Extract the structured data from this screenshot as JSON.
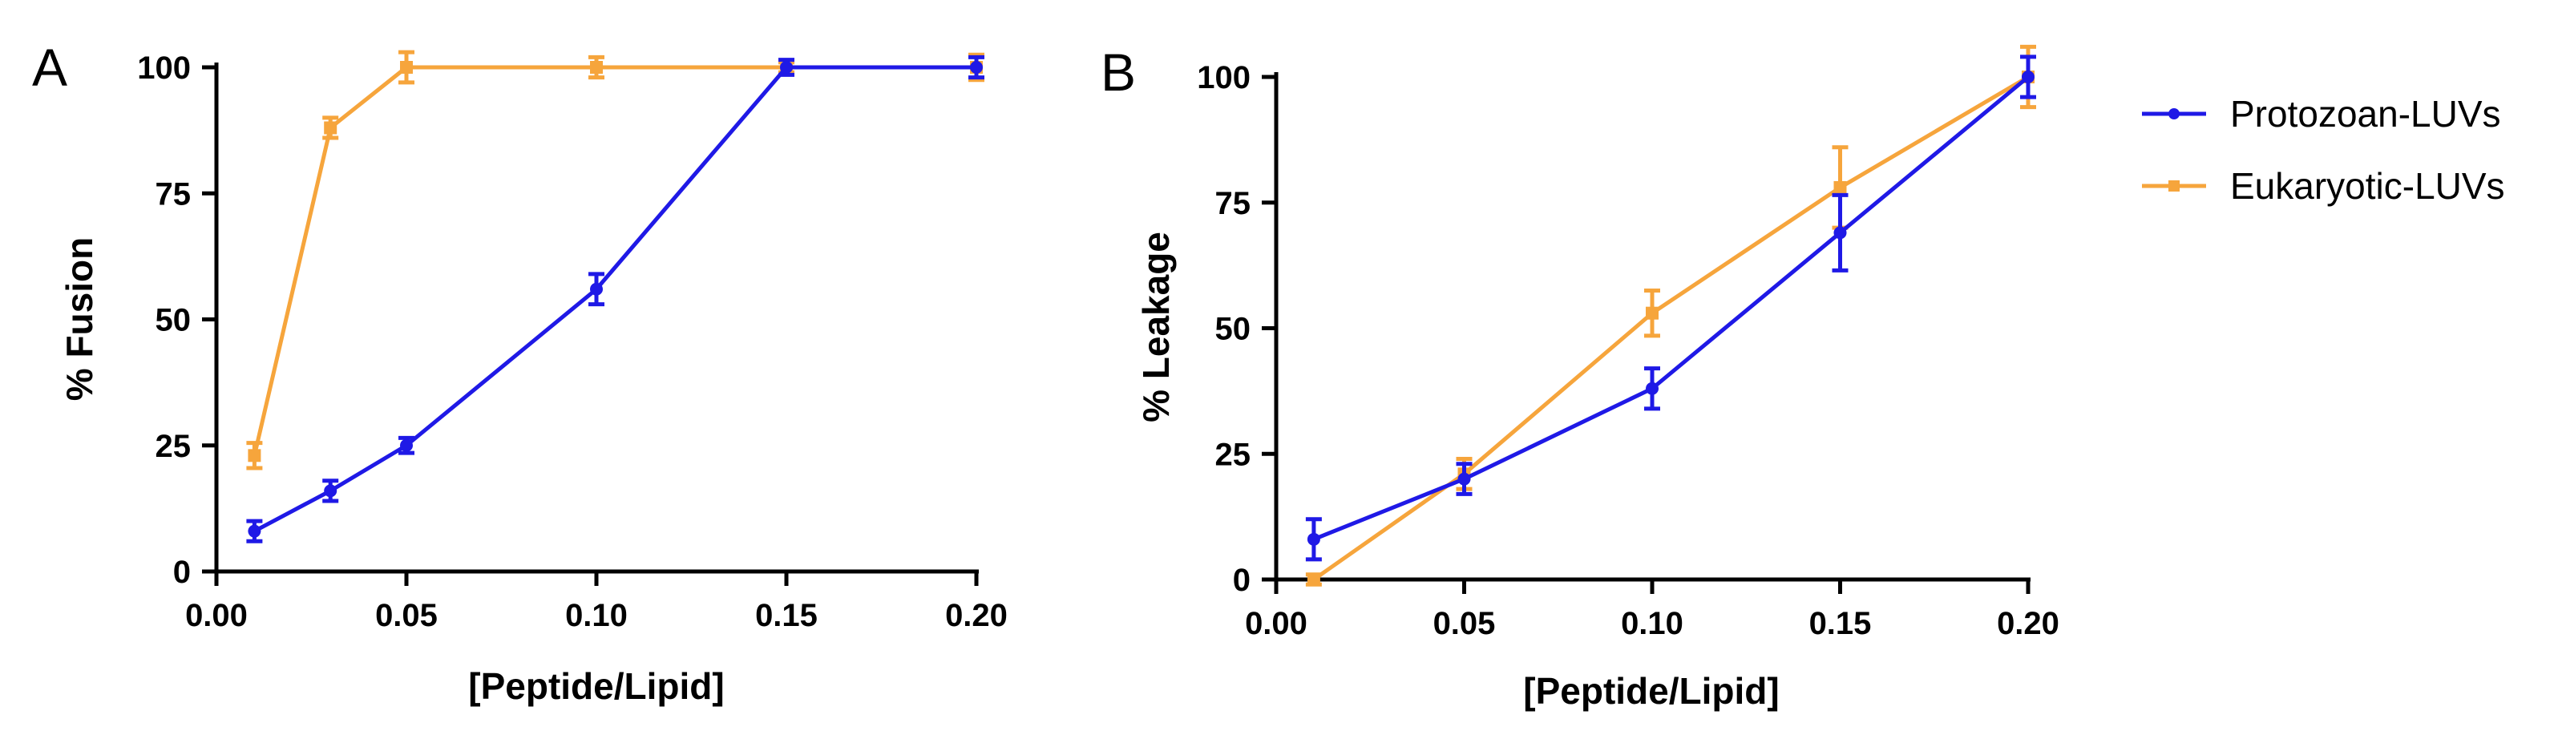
{
  "colors": {
    "protozoan": "#1f19e6",
    "eukaryotic": "#f6a53c",
    "axis": "#000000"
  },
  "chart_data": [
    {
      "type": "line",
      "panel_label": "A",
      "xlabel": "[Peptide/Lipid]",
      "ylabel": "% Fusion",
      "xlim": [
        0,
        0.2
      ],
      "ylim": [
        0,
        100
      ],
      "xticks": [
        0.0,
        0.05,
        0.1,
        0.15,
        0.2
      ],
      "xtick_labels": [
        "0.00",
        "0.05",
        "0.10",
        "0.15",
        "0.20"
      ],
      "yticks": [
        0,
        25,
        50,
        75,
        100
      ],
      "ytick_labels": [
        "0",
        "25",
        "50",
        "75",
        "100"
      ],
      "series": [
        {
          "key": "protozoan",
          "name": "Protozoan-LUVs",
          "marker": "circle",
          "x": [
            0.01,
            0.03,
            0.05,
            0.1,
            0.15,
            0.2
          ],
          "y": [
            8,
            16,
            25,
            56,
            100,
            100
          ],
          "err": [
            2,
            2,
            1.5,
            3,
            1.5,
            2
          ]
        },
        {
          "key": "eukaryotic",
          "name": "Eukaryotic-LUVs",
          "marker": "square",
          "x": [
            0.01,
            0.03,
            0.05,
            0.1,
            0.15,
            0.2
          ],
          "y": [
            23,
            88,
            100,
            100,
            100,
            100
          ],
          "err": [
            2.5,
            2,
            3,
            2,
            1,
            2.5
          ]
        }
      ]
    },
    {
      "type": "line",
      "panel_label": "B",
      "xlabel": "[Peptide/Lipid]",
      "ylabel": "% Leakage",
      "xlim": [
        0,
        0.2
      ],
      "ylim": [
        0,
        100
      ],
      "xticks": [
        0.0,
        0.05,
        0.1,
        0.15,
        0.2
      ],
      "xtick_labels": [
        "0.00",
        "0.05",
        "0.10",
        "0.15",
        "0.20"
      ],
      "yticks": [
        0,
        25,
        50,
        75,
        100
      ],
      "ytick_labels": [
        "0",
        "25",
        "50",
        "75",
        "100"
      ],
      "series": [
        {
          "key": "protozoan",
          "name": "Protozoan-LUVs",
          "marker": "circle",
          "x": [
            0.01,
            0.05,
            0.1,
            0.15,
            0.2
          ],
          "y": [
            8,
            20,
            38,
            69,
            100
          ],
          "err": [
            4,
            3,
            4,
            7.5,
            4
          ]
        },
        {
          "key": "eukaryotic",
          "name": "Eukaryotic-LUVs",
          "marker": "square",
          "x": [
            0.01,
            0.05,
            0.1,
            0.15,
            0.2
          ],
          "y": [
            0,
            21,
            53,
            78,
            100
          ],
          "err": [
            1,
            3,
            4.5,
            8,
            6
          ]
        }
      ]
    }
  ],
  "legend": {
    "placement": "right",
    "entries": [
      {
        "key": "protozoan",
        "label": "Protozoan-LUVs",
        "marker": "circle"
      },
      {
        "key": "eukaryotic",
        "label": "Eukaryotic-LUVs",
        "marker": "square"
      }
    ]
  }
}
